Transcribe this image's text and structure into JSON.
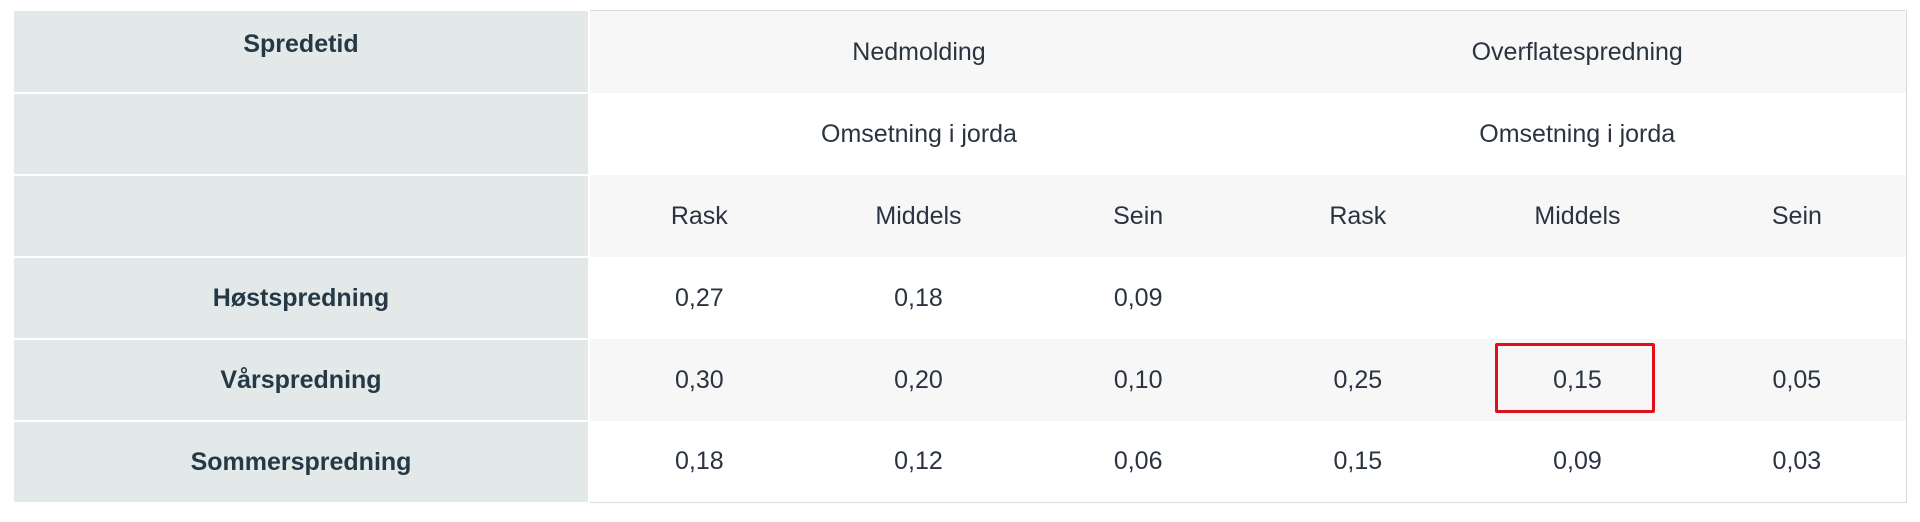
{
  "table": {
    "row_header_title": "Spredetid",
    "groups": [
      {
        "title": "Nedmolding",
        "subtitle": "Omsetning i jorda"
      },
      {
        "title": "Overflatespredning",
        "subtitle": "Omsetning i jorda"
      }
    ],
    "columns": [
      "Rask",
      "Middels",
      "Sein",
      "Rask",
      "Middels",
      "Sein"
    ],
    "rows": [
      {
        "label": "Høstspredning",
        "values": [
          "0,27",
          "0,18",
          "0,09",
          "",
          "",
          ""
        ]
      },
      {
        "label": "Vårspredning",
        "values": [
          "0,30",
          "0,20",
          "0,10",
          "0,25",
          "0,15",
          "0,05"
        ]
      },
      {
        "label": "Sommerspredning",
        "values": [
          "0,18",
          "0,12",
          "0,06",
          "0,15",
          "0,09",
          "0,03"
        ]
      }
    ],
    "highlighted_cell": {
      "row": "Vårspredning",
      "column": "Middels",
      "group": "Overflatespredning",
      "color": "#e0101b"
    }
  }
}
